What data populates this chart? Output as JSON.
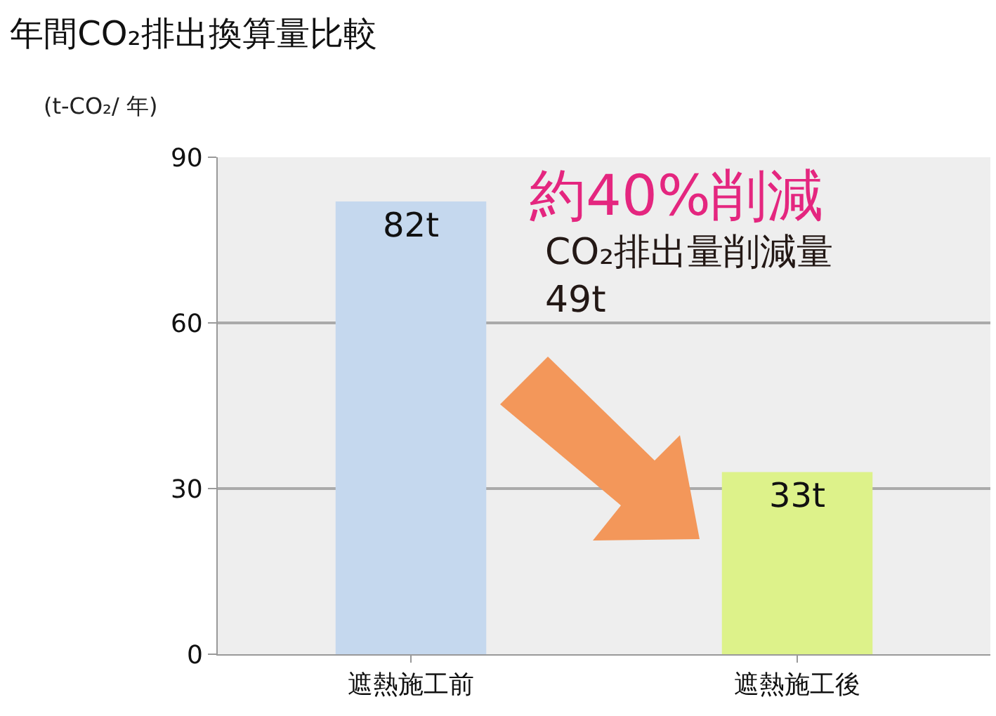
{
  "chart_data": {
    "type": "bar",
    "title": "年間CO₂排出換算量比較",
    "ylabel": "(t-CO₂/ 年)",
    "categories": [
      "遮熱施工前",
      "遮熱施工後"
    ],
    "values": [
      82,
      33
    ],
    "colors": [
      "#c5d8ee",
      "#ddf28a"
    ],
    "value_labels": [
      "82t",
      "33t"
    ],
    "ylim": [
      0,
      90
    ],
    "yticks": [
      0,
      30,
      60,
      90
    ],
    "grid": "y",
    "legend": false,
    "annotations": [
      "約40%削減",
      "CO₂排出量削減量\n49t"
    ]
  }
}
